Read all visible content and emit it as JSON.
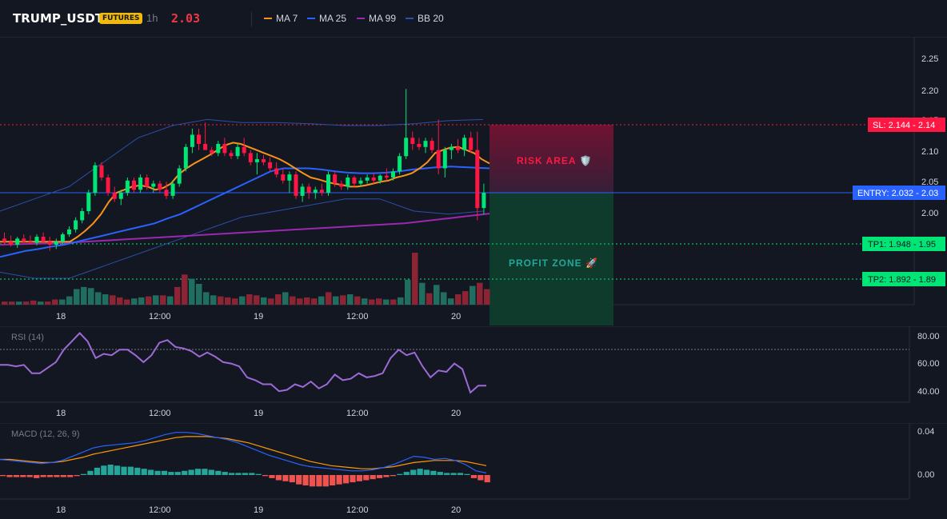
{
  "header": {
    "symbol": "TRUMP_USDT",
    "badge": "FUTURES",
    "timeframe": "1h",
    "price": "2.03",
    "legend": [
      {
        "label": "MA 7",
        "color": "#f7931a"
      },
      {
        "label": "MA 25",
        "color": "#2962ff"
      },
      {
        "label": "MA 99",
        "color": "#9c27b0"
      },
      {
        "label": "BB 20",
        "color": "#2b4ea8"
      }
    ]
  },
  "colors": {
    "up": "#26a69a",
    "up_candle": "#00e676",
    "down": "#ff1744",
    "background": "#131722",
    "grid": "#1f2430"
  },
  "main_chart": {
    "y_ticks": [
      "2.25",
      "2.20",
      "2.15",
      "2.10",
      "2.05",
      "2.00"
    ],
    "x_ticks": [
      "18",
      "12:00",
      "19",
      "12:00",
      "20"
    ],
    "levels": {
      "sl": "SL: 2.144 - 2.14",
      "entry": "ENTRY: 2.032 - 2.03",
      "tp1": "TP1: 1.948 - 1.95",
      "tp2": "TP2: 1.892 - 1.89"
    },
    "zones": {
      "risk": "RISK AREA 🛡️",
      "profit": "PROFIT ZONE 🚀"
    }
  },
  "chart_data": {
    "type": "candlestick",
    "candles": [
      [
        1.955,
        1.965,
        1.945,
        1.95
      ],
      [
        1.95,
        1.96,
        1.942,
        1.945
      ],
      [
        1.945,
        1.958,
        1.94,
        1.955
      ],
      [
        1.955,
        1.962,
        1.948,
        1.95
      ],
      [
        1.95,
        1.96,
        1.945,
        1.948
      ],
      [
        1.948,
        1.962,
        1.944,
        1.958
      ],
      [
        1.958,
        1.965,
        1.948,
        1.95
      ],
      [
        1.95,
        1.958,
        1.935,
        1.945
      ],
      [
        1.945,
        1.955,
        1.938,
        1.95
      ],
      [
        1.95,
        1.965,
        1.945,
        1.962
      ],
      [
        1.962,
        1.975,
        1.958,
        1.97
      ],
      [
        1.97,
        1.99,
        1.965,
        1.985
      ],
      [
        1.985,
        2.005,
        1.98,
        2.0
      ],
      [
        2.0,
        2.035,
        1.995,
        2.03
      ],
      [
        2.03,
        2.08,
        2.025,
        2.075
      ],
      [
        2.075,
        2.08,
        2.05,
        2.055
      ],
      [
        2.055,
        2.06,
        2.025,
        2.03
      ],
      [
        2.03,
        2.04,
        2.015,
        2.02
      ],
      [
        2.02,
        2.035,
        2.01,
        2.03
      ],
      [
        2.03,
        2.055,
        2.025,
        2.05
      ],
      [
        2.05,
        2.055,
        2.03,
        2.035
      ],
      [
        2.035,
        2.06,
        2.03,
        2.055
      ],
      [
        2.055,
        2.06,
        2.035,
        2.04
      ],
      [
        2.04,
        2.05,
        2.03,
        2.045
      ],
      [
        2.045,
        2.05,
        2.03,
        2.035
      ],
      [
        2.035,
        2.048,
        2.02,
        2.025
      ],
      [
        2.025,
        2.05,
        2.02,
        2.045
      ],
      [
        2.045,
        2.075,
        2.04,
        2.07
      ],
      [
        2.07,
        2.11,
        2.065,
        2.105
      ],
      [
        2.105,
        2.135,
        2.095,
        2.125
      ],
      [
        2.125,
        2.135,
        2.1,
        2.11
      ],
      [
        2.11,
        2.145,
        2.1,
        2.1
      ],
      [
        2.1,
        2.105,
        2.09,
        2.095
      ],
      [
        2.095,
        2.115,
        2.09,
        2.11
      ],
      [
        2.11,
        2.12,
        2.09,
        2.095
      ],
      [
        2.095,
        2.1,
        2.085,
        2.09
      ],
      [
        2.09,
        2.11,
        2.085,
        2.105
      ],
      [
        2.105,
        2.12,
        2.09,
        2.095
      ],
      [
        2.095,
        2.1,
        2.075,
        2.08
      ],
      [
        2.08,
        2.095,
        2.06,
        2.085
      ],
      [
        2.085,
        2.092,
        2.075,
        2.08
      ],
      [
        2.08,
        2.088,
        2.065,
        2.07
      ],
      [
        2.07,
        2.08,
        2.055,
        2.06
      ],
      [
        2.06,
        2.07,
        2.045,
        2.05
      ],
      [
        2.05,
        2.065,
        2.03,
        2.06
      ],
      [
        2.06,
        2.065,
        2.02,
        2.025
      ],
      [
        2.025,
        2.045,
        2.015,
        2.04
      ],
      [
        2.04,
        2.045,
        2.02,
        2.03
      ],
      [
        2.03,
        2.04,
        2.02,
        2.035
      ],
      [
        2.035,
        2.045,
        2.025,
        2.03
      ],
      [
        2.03,
        2.065,
        2.025,
        2.06
      ],
      [
        2.06,
        2.065,
        2.04,
        2.045
      ],
      [
        2.045,
        2.05,
        2.035,
        2.04
      ],
      [
        2.04,
        2.06,
        2.035,
        2.055
      ],
      [
        2.055,
        2.058,
        2.04,
        2.045
      ],
      [
        2.045,
        2.055,
        2.04,
        2.05
      ],
      [
        2.05,
        2.06,
        2.045,
        2.055
      ],
      [
        2.055,
        2.062,
        2.045,
        2.05
      ],
      [
        2.05,
        2.06,
        2.045,
        2.058
      ],
      [
        2.058,
        2.07,
        2.05,
        2.055
      ],
      [
        2.055,
        2.07,
        2.05,
        2.065
      ],
      [
        2.065,
        2.095,
        2.06,
        2.09
      ],
      [
        2.09,
        2.2,
        2.085,
        2.12
      ],
      [
        2.12,
        2.13,
        2.1,
        2.11
      ],
      [
        2.11,
        2.12,
        2.1,
        2.105
      ],
      [
        2.105,
        2.12,
        2.095,
        2.115
      ],
      [
        2.115,
        2.12,
        2.095,
        2.1
      ],
      [
        2.1,
        2.15,
        2.06,
        2.07
      ],
      [
        2.07,
        2.105,
        2.055,
        2.1
      ],
      [
        2.1,
        2.11,
        2.085,
        2.105
      ],
      [
        2.105,
        2.118,
        2.095,
        2.1
      ],
      [
        2.1,
        2.125,
        2.09,
        2.12
      ],
      [
        2.12,
        2.13,
        2.095,
        2.1
      ],
      [
        2.1,
        2.13,
        1.985,
        2.005
      ],
      [
        2.005,
        2.045,
        1.995,
        2.03
      ]
    ],
    "ma7": [
      1.95,
      1.95,
      1.95,
      1.95,
      1.95,
      1.95,
      1.95,
      1.95,
      1.95,
      1.95,
      1.958,
      1.968,
      1.98,
      1.995,
      2.015,
      2.03,
      2.035,
      2.04,
      2.042,
      2.04,
      2.035,
      2.038,
      2.045,
      2.06,
      2.07,
      2.078,
      2.085,
      2.092,
      2.1,
      2.108,
      2.112,
      2.11,
      2.105,
      2.1,
      2.095,
      2.09,
      2.085,
      2.078,
      2.07,
      2.062,
      2.055,
      2.052,
      2.048,
      2.045,
      2.043,
      2.04,
      2.04,
      2.042,
      2.045,
      2.048,
      2.05,
      2.055,
      2.058,
      2.062,
      2.07,
      2.08,
      2.095,
      2.1,
      2.104,
      2.105,
      2.1,
      2.095,
      2.085,
      2.078
    ],
    "ma25": [
      1.925,
      1.93,
      1.935,
      1.938,
      1.942,
      1.945,
      1.95,
      1.955,
      1.96,
      1.965,
      1.97,
      1.975,
      1.98,
      1.988,
      1.995,
      2.005,
      2.015,
      2.025,
      2.035,
      2.045,
      2.055,
      2.065,
      2.07,
      2.07,
      2.07,
      2.068,
      2.065,
      2.063,
      2.062,
      2.062,
      2.063,
      2.065,
      2.068,
      2.07,
      2.072,
      2.073,
      2.072,
      2.071,
      2.07
    ],
    "ma99": [
      1.945,
      1.946,
      1.947,
      1.948,
      1.95,
      1.952,
      1.954,
      1.956,
      1.958,
      1.96,
      1.962,
      1.964,
      1.966,
      1.968,
      1.97,
      1.972,
      1.974,
      1.976,
      1.978,
      1.98,
      1.984,
      1.988,
      1.992,
      1.996
    ],
    "bb_upper": [
      2.0,
      2.02,
      2.04,
      2.08,
      2.12,
      2.14,
      2.15,
      2.145,
      2.145,
      2.143,
      2.14,
      2.14,
      2.143,
      2.148,
      2.15
    ],
    "bb_lower": [
      1.9,
      1.89,
      1.89,
      1.91,
      1.93,
      1.95,
      1.97,
      1.99,
      2.0,
      2.01,
      2.02,
      2.02,
      2.0,
      1.995,
      2.0
    ]
  },
  "volume": {
    "values": [
      3,
      3,
      3,
      3,
      4,
      3,
      3,
      5,
      5,
      8,
      15,
      17,
      16,
      12,
      10,
      9,
      7,
      5,
      6,
      7,
      8,
      9,
      9,
      8,
      17,
      29,
      25,
      20,
      12,
      9,
      8,
      7,
      6,
      8,
      10,
      9,
      7,
      6,
      10,
      12,
      8,
      6,
      7,
      6,
      8,
      12,
      8,
      9,
      10,
      8,
      6,
      5,
      6,
      5,
      5,
      7,
      24,
      50,
      21,
      11,
      19,
      12,
      6,
      10,
      13,
      18,
      21,
      15
    ]
  },
  "rsi": {
    "label": "RSI (14)",
    "y_ticks": [
      "80.00",
      "60.00",
      "40.00"
    ],
    "x_ticks": [
      "18",
      "12:00",
      "19",
      "12:00",
      "20"
    ],
    "values": [
      59,
      59,
      58,
      59,
      53,
      53,
      57,
      61,
      70,
      76,
      82,
      76,
      64,
      67,
      66,
      70,
      70,
      66,
      61,
      66,
      75,
      77,
      72,
      71,
      69,
      65,
      68,
      65,
      61,
      60,
      58,
      50,
      48,
      45,
      45,
      40,
      41,
      45,
      43,
      47,
      42,
      45,
      52,
      48,
      49,
      53,
      50,
      51,
      53,
      64,
      70,
      66,
      68,
      58,
      50,
      55,
      54,
      60,
      56,
      39,
      44,
      44
    ],
    "y_range": [
      30,
      90
    ],
    "overbought": 70
  },
  "macd": {
    "label": "MACD (12, 26, 9)",
    "y_ticks": [
      "0.04",
      "0.00"
    ],
    "x_ticks": [
      "18",
      "12:00",
      "19",
      "12:00",
      "20"
    ],
    "macd_line": [
      0.015,
      0.014,
      0.013,
      0.012,
      0.011,
      0.012,
      0.014,
      0.018,
      0.022,
      0.026,
      0.028,
      0.029,
      0.03,
      0.031,
      0.033,
      0.036,
      0.039,
      0.041,
      0.041,
      0.04,
      0.038,
      0.036,
      0.034,
      0.031,
      0.027,
      0.023,
      0.019,
      0.016,
      0.013,
      0.01,
      0.008,
      0.007,
      0.006,
      0.005,
      0.004,
      0.004,
      0.005,
      0.007,
      0.01,
      0.014,
      0.018,
      0.017,
      0.015,
      0.016,
      0.014,
      0.01,
      0.004,
      0.002
    ],
    "signal_line": [
      0.015,
      0.015,
      0.014,
      0.013,
      0.012,
      0.012,
      0.013,
      0.015,
      0.017,
      0.02,
      0.022,
      0.024,
      0.026,
      0.028,
      0.03,
      0.032,
      0.034,
      0.036,
      0.037,
      0.037,
      0.037,
      0.036,
      0.035,
      0.033,
      0.031,
      0.028,
      0.025,
      0.022,
      0.019,
      0.016,
      0.013,
      0.011,
      0.009,
      0.008,
      0.007,
      0.006,
      0.006,
      0.007,
      0.008,
      0.01,
      0.012,
      0.013,
      0.014,
      0.014,
      0.014,
      0.013,
      0.011,
      0.009
    ],
    "histogram": [
      -0.001,
      -0.002,
      -0.002,
      -0.002,
      -0.002,
      -0.003,
      -0.002,
      -0.002,
      -0.002,
      -0.002,
      -0.002,
      -0.001,
      0.001,
      0.004,
      0.007,
      0.009,
      0.01,
      0.009,
      0.008,
      0.008,
      0.007,
      0.006,
      0.005,
      0.004,
      0.004,
      0.003,
      0.003,
      0.004,
      0.005,
      0.006,
      0.006,
      0.005,
      0.004,
      0.003,
      0.002,
      0.002,
      0.002,
      0.002,
      0.001,
      -0.001,
      -0.003,
      -0.005,
      -0.006,
      -0.007,
      -0.009,
      -0.01,
      -0.011,
      -0.011,
      -0.011,
      -0.01,
      -0.009,
      -0.008,
      -0.007,
      -0.006,
      -0.005,
      -0.004,
      -0.003,
      -0.002,
      -0.001,
      0.001,
      0.003,
      0.005,
      0.006,
      0.005,
      0.004,
      0.003,
      0.002,
      0.002,
      0.002,
      0.001,
      -0.003,
      -0.005,
      -0.007
    ],
    "y_range": [
      -0.015,
      0.045
    ]
  }
}
